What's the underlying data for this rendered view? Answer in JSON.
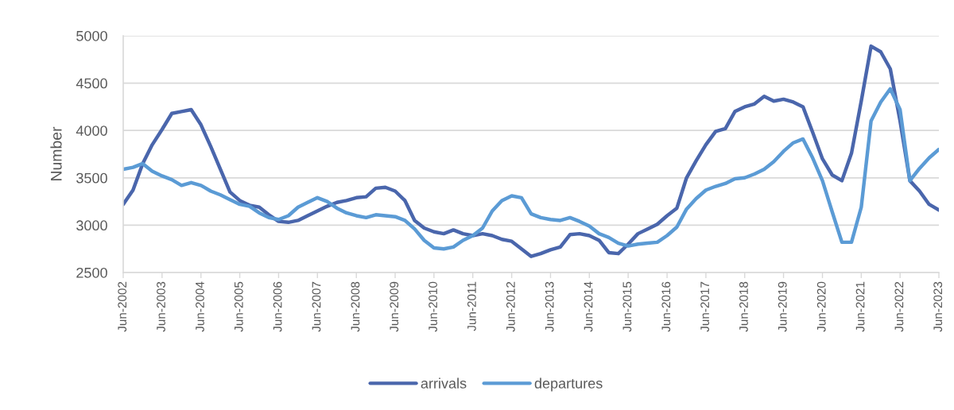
{
  "chart_data": {
    "type": "line",
    "ylabel": "Number",
    "x": [
      "2002-06",
      "2002-09",
      "2002-12",
      "2003-03",
      "2003-06",
      "2003-09",
      "2003-12",
      "2004-03",
      "2004-06",
      "2004-09",
      "2004-12",
      "2005-03",
      "2005-06",
      "2005-09",
      "2005-12",
      "2006-03",
      "2006-06",
      "2006-09",
      "2006-12",
      "2007-03",
      "2007-06",
      "2007-09",
      "2007-12",
      "2008-03",
      "2008-06",
      "2008-09",
      "2008-12",
      "2009-03",
      "2009-06",
      "2009-09",
      "2009-12",
      "2010-03",
      "2010-06",
      "2010-09",
      "2010-12",
      "2011-03",
      "2011-06",
      "2011-09",
      "2011-12",
      "2012-03",
      "2012-06",
      "2012-09",
      "2012-12",
      "2013-03",
      "2013-06",
      "2013-09",
      "2013-12",
      "2014-03",
      "2014-06",
      "2014-09",
      "2014-12",
      "2015-03",
      "2015-06",
      "2015-09",
      "2015-12",
      "2016-03",
      "2016-06",
      "2016-09",
      "2016-12",
      "2017-03",
      "2017-06",
      "2017-09",
      "2017-12",
      "2018-03",
      "2018-06",
      "2018-09",
      "2018-12",
      "2019-03",
      "2019-06",
      "2019-09",
      "2019-12",
      "2020-03",
      "2020-06",
      "2020-09",
      "2020-12",
      "2021-03",
      "2021-06",
      "2021-09",
      "2021-12",
      "2022-03",
      "2022-06",
      "2022-09",
      "2022-12",
      "2023-03",
      "2023-06"
    ],
    "series": [
      {
        "name": "arrivals",
        "color": "#4a66ac",
        "values": [
          3220,
          3370,
          3650,
          3850,
          4010,
          4180,
          4200,
          4220,
          4060,
          3830,
          3590,
          3350,
          3260,
          3210,
          3190,
          3110,
          3040,
          3030,
          3050,
          3100,
          3150,
          3200,
          3240,
          3260,
          3290,
          3300,
          3390,
          3400,
          3360,
          3260,
          3050,
          2970,
          2930,
          2910,
          2950,
          2910,
          2890,
          2910,
          2890,
          2850,
          2830,
          2750,
          2670,
          2700,
          2740,
          2770,
          2900,
          2910,
          2890,
          2840,
          2710,
          2700,
          2800,
          2910,
          2960,
          3010,
          3100,
          3180,
          3500,
          3680,
          3850,
          3990,
          4020,
          4200,
          4250,
          4280,
          4360,
          4310,
          4330,
          4300,
          4250,
          3980,
          3700,
          3530,
          3470,
          3760,
          4310,
          4890,
          4830,
          4650,
          4100,
          3470,
          3360,
          3220,
          3160
        ]
      },
      {
        "name": "departures",
        "color": "#5b9bd5",
        "values": [
          3590,
          3610,
          3650,
          3570,
          3520,
          3480,
          3420,
          3450,
          3420,
          3360,
          3320,
          3270,
          3220,
          3200,
          3130,
          3080,
          3060,
          3100,
          3190,
          3240,
          3290,
          3250,
          3180,
          3130,
          3100,
          3080,
          3110,
          3100,
          3090,
          3050,
          2960,
          2840,
          2760,
          2750,
          2770,
          2840,
          2890,
          2970,
          3150,
          3260,
          3310,
          3290,
          3120,
          3080,
          3060,
          3050,
          3080,
          3040,
          2990,
          2910,
          2870,
          2810,
          2780,
          2800,
          2810,
          2820,
          2890,
          2980,
          3170,
          3280,
          3370,
          3410,
          3440,
          3490,
          3500,
          3540,
          3590,
          3670,
          3780,
          3870,
          3910,
          3710,
          3470,
          3140,
          2820,
          2820,
          3190,
          4100,
          4300,
          4440,
          4220,
          3470,
          3600,
          3710,
          3800
        ]
      }
    ],
    "xlim": [
      "2002-06",
      "2023-06"
    ],
    "xticks": [
      {
        "value": "2002-06",
        "label": "Jun-2002"
      },
      {
        "value": "2003-06",
        "label": "Jun-2003"
      },
      {
        "value": "2004-06",
        "label": "Jun-2004"
      },
      {
        "value": "2005-06",
        "label": "Jun-2005"
      },
      {
        "value": "2006-06",
        "label": "Jun-2006"
      },
      {
        "value": "2007-06",
        "label": "Jun-2007"
      },
      {
        "value": "2008-06",
        "label": "Jun-2008"
      },
      {
        "value": "2009-06",
        "label": "Jun-2009"
      },
      {
        "value": "2010-06",
        "label": "Jun-2010"
      },
      {
        "value": "2011-06",
        "label": "Jun-2011"
      },
      {
        "value": "2012-06",
        "label": "Jun-2012"
      },
      {
        "value": "2013-06",
        "label": "Jun-2013"
      },
      {
        "value": "2014-06",
        "label": "Jun-2014"
      },
      {
        "value": "2015-06",
        "label": "Jun-2015"
      },
      {
        "value": "2016-06",
        "label": "Jun-2016"
      },
      {
        "value": "2017-06",
        "label": "Jun-2017"
      },
      {
        "value": "2018-06",
        "label": "Jun-2018"
      },
      {
        "value": "2019-06",
        "label": "Jun-2019"
      },
      {
        "value": "2020-06",
        "label": "Jun-2020"
      },
      {
        "value": "2021-06",
        "label": "Jun-2021"
      },
      {
        "value": "2022-06",
        "label": "Jun-2022"
      },
      {
        "value": "2023-06",
        "label": "Jun-2023"
      }
    ],
    "ylim": [
      2500,
      5000
    ],
    "yticks": [
      2500,
      3000,
      3500,
      4000,
      4500,
      5000
    ],
    "grid": "y",
    "legend": "bottom",
    "line_style": "solid"
  }
}
